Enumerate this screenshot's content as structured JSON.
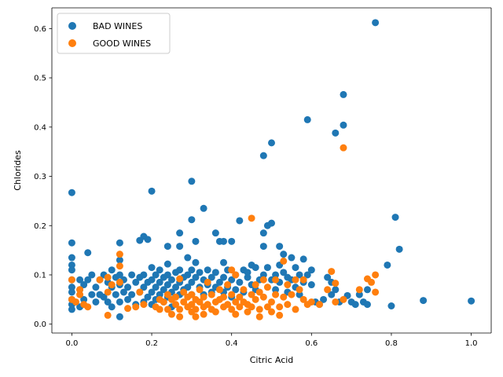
{
  "chart_data": {
    "type": "scatter",
    "title": "",
    "xlabel": "Citric Acid",
    "ylabel": "Chlorides",
    "xlim": [
      -0.05,
      1.05
    ],
    "ylim": [
      -0.018,
      0.642
    ],
    "xticks": [
      0.0,
      0.2,
      0.4,
      0.6,
      0.8,
      1.0
    ],
    "xtick_labels": [
      "0.0",
      "0.2",
      "0.4",
      "0.6",
      "0.8",
      "1.0"
    ],
    "yticks": [
      0.0,
      0.1,
      0.2,
      0.3,
      0.4,
      0.5,
      0.6
    ],
    "ytick_labels": [
      "0.0",
      "0.1",
      "0.2",
      "0.3",
      "0.4",
      "0.5",
      "0.6"
    ],
    "grid": false,
    "legend_position": "top-left",
    "series": [
      {
        "name": "BAD WINES",
        "color": "#1f77b4",
        "points": [
          [
            0.0,
            0.267
          ],
          [
            0.0,
            0.165
          ],
          [
            0.0,
            0.135
          ],
          [
            0.0,
            0.12
          ],
          [
            0.0,
            0.11
          ],
          [
            0.0,
            0.09
          ],
          [
            0.0,
            0.075
          ],
          [
            0.0,
            0.065
          ],
          [
            0.0,
            0.05
          ],
          [
            0.0,
            0.04
          ],
          [
            0.0,
            0.03
          ],
          [
            0.02,
            0.09
          ],
          [
            0.02,
            0.07
          ],
          [
            0.02,
            0.035
          ],
          [
            0.03,
            0.08
          ],
          [
            0.03,
            0.05
          ],
          [
            0.04,
            0.145
          ],
          [
            0.04,
            0.09
          ],
          [
            0.05,
            0.1
          ],
          [
            0.05,
            0.06
          ],
          [
            0.06,
            0.075
          ],
          [
            0.06,
            0.045
          ],
          [
            0.07,
            0.09
          ],
          [
            0.07,
            0.06
          ],
          [
            0.08,
            0.1
          ],
          [
            0.08,
            0.055
          ],
          [
            0.09,
            0.085
          ],
          [
            0.09,
            0.045
          ],
          [
            0.1,
            0.11
          ],
          [
            0.1,
            0.075
          ],
          [
            0.1,
            0.035
          ],
          [
            0.11,
            0.095
          ],
          [
            0.11,
            0.06
          ],
          [
            0.12,
            0.165
          ],
          [
            0.12,
            0.13
          ],
          [
            0.12,
            0.1
          ],
          [
            0.12,
            0.08
          ],
          [
            0.12,
            0.045
          ],
          [
            0.12,
            0.015
          ],
          [
            0.13,
            0.09
          ],
          [
            0.13,
            0.065
          ],
          [
            0.14,
            0.075
          ],
          [
            0.14,
            0.05
          ],
          [
            0.15,
            0.1
          ],
          [
            0.15,
            0.06
          ],
          [
            0.16,
            0.085
          ],
          [
            0.16,
            0.04
          ],
          [
            0.17,
            0.17
          ],
          [
            0.17,
            0.095
          ],
          [
            0.17,
            0.065
          ],
          [
            0.18,
            0.178
          ],
          [
            0.18,
            0.1
          ],
          [
            0.18,
            0.075
          ],
          [
            0.18,
            0.045
          ],
          [
            0.19,
            0.172
          ],
          [
            0.19,
            0.085
          ],
          [
            0.19,
            0.055
          ],
          [
            0.2,
            0.27
          ],
          [
            0.2,
            0.115
          ],
          [
            0.2,
            0.09
          ],
          [
            0.2,
            0.065
          ],
          [
            0.2,
            0.04
          ],
          [
            0.21,
            0.1
          ],
          [
            0.21,
            0.075
          ],
          [
            0.21,
            0.05
          ],
          [
            0.22,
            0.11
          ],
          [
            0.22,
            0.085
          ],
          [
            0.22,
            0.06
          ],
          [
            0.23,
            0.095
          ],
          [
            0.23,
            0.07
          ],
          [
            0.23,
            0.045
          ],
          [
            0.24,
            0.158
          ],
          [
            0.24,
            0.122
          ],
          [
            0.24,
            0.1
          ],
          [
            0.24,
            0.08
          ],
          [
            0.24,
            0.055
          ],
          [
            0.25,
            0.09
          ],
          [
            0.25,
            0.065
          ],
          [
            0.25,
            0.035
          ],
          [
            0.26,
            0.105
          ],
          [
            0.26,
            0.075
          ],
          [
            0.27,
            0.185
          ],
          [
            0.27,
            0.158
          ],
          [
            0.27,
            0.11
          ],
          [
            0.27,
            0.085
          ],
          [
            0.27,
            0.06
          ],
          [
            0.28,
            0.095
          ],
          [
            0.28,
            0.07
          ],
          [
            0.29,
            0.135
          ],
          [
            0.29,
            0.1
          ],
          [
            0.29,
            0.075
          ],
          [
            0.3,
            0.29
          ],
          [
            0.3,
            0.212
          ],
          [
            0.3,
            0.11
          ],
          [
            0.3,
            0.085
          ],
          [
            0.3,
            0.06
          ],
          [
            0.31,
            0.168
          ],
          [
            0.31,
            0.125
          ],
          [
            0.31,
            0.095
          ],
          [
            0.32,
            0.105
          ],
          [
            0.32,
            0.075
          ],
          [
            0.33,
            0.235
          ],
          [
            0.33,
            0.09
          ],
          [
            0.33,
            0.06
          ],
          [
            0.34,
            0.11
          ],
          [
            0.34,
            0.08
          ],
          [
            0.35,
            0.095
          ],
          [
            0.35,
            0.065
          ],
          [
            0.36,
            0.185
          ],
          [
            0.36,
            0.105
          ],
          [
            0.36,
            0.075
          ],
          [
            0.37,
            0.168
          ],
          [
            0.37,
            0.085
          ],
          [
            0.38,
            0.168
          ],
          [
            0.38,
            0.125
          ],
          [
            0.38,
            0.095
          ],
          [
            0.38,
            0.065
          ],
          [
            0.39,
            0.11
          ],
          [
            0.39,
            0.075
          ],
          [
            0.4,
            0.168
          ],
          [
            0.4,
            0.09
          ],
          [
            0.4,
            0.055
          ],
          [
            0.41,
            0.1
          ],
          [
            0.41,
            0.07
          ],
          [
            0.42,
            0.21
          ],
          [
            0.42,
            0.085
          ],
          [
            0.43,
            0.11
          ],
          [
            0.43,
            0.065
          ],
          [
            0.44,
            0.095
          ],
          [
            0.44,
            0.105
          ],
          [
            0.45,
            0.12
          ],
          [
            0.45,
            0.08
          ],
          [
            0.46,
            0.115
          ],
          [
            0.46,
            0.07
          ],
          [
            0.47,
            0.09
          ],
          [
            0.48,
            0.342
          ],
          [
            0.48,
            0.185
          ],
          [
            0.48,
            0.158
          ],
          [
            0.48,
            0.1
          ],
          [
            0.49,
            0.2
          ],
          [
            0.49,
            0.115
          ],
          [
            0.5,
            0.368
          ],
          [
            0.5,
            0.205
          ],
          [
            0.5,
            0.09
          ],
          [
            0.51,
            0.1
          ],
          [
            0.51,
            0.07
          ],
          [
            0.52,
            0.158
          ],
          [
            0.52,
            0.12
          ],
          [
            0.52,
            0.085
          ],
          [
            0.53,
            0.142
          ],
          [
            0.53,
            0.105
          ],
          [
            0.54,
            0.095
          ],
          [
            0.54,
            0.065
          ],
          [
            0.55,
            0.135
          ],
          [
            0.55,
            0.09
          ],
          [
            0.56,
            0.115
          ],
          [
            0.56,
            0.075
          ],
          [
            0.57,
            0.1
          ],
          [
            0.57,
            0.06
          ],
          [
            0.58,
            0.132
          ],
          [
            0.58,
            0.085
          ],
          [
            0.59,
            0.415
          ],
          [
            0.59,
            0.1
          ],
          [
            0.6,
            0.11
          ],
          [
            0.6,
            0.08
          ],
          [
            0.61,
            0.045
          ],
          [
            0.62,
            0.04
          ],
          [
            0.63,
            0.05
          ],
          [
            0.64,
            0.095
          ],
          [
            0.65,
            0.085
          ],
          [
            0.65,
            0.06
          ],
          [
            0.66,
            0.388
          ],
          [
            0.66,
            0.07
          ],
          [
            0.67,
            0.045
          ],
          [
            0.68,
            0.466
          ],
          [
            0.68,
            0.404
          ],
          [
            0.69,
            0.058
          ],
          [
            0.7,
            0.045
          ],
          [
            0.71,
            0.04
          ],
          [
            0.72,
            0.06
          ],
          [
            0.73,
            0.045
          ],
          [
            0.74,
            0.07
          ],
          [
            0.74,
            0.04
          ],
          [
            0.76,
            0.612
          ],
          [
            0.79,
            0.12
          ],
          [
            0.8,
            0.037
          ],
          [
            0.81,
            0.217
          ],
          [
            0.82,
            0.152
          ],
          [
            0.88,
            0.048
          ],
          [
            1.0,
            0.047
          ]
        ]
      },
      {
        "name": "GOOD WINES",
        "color": "#ff7f0e",
        "points": [
          [
            0.0,
            0.09
          ],
          [
            0.0,
            0.05
          ],
          [
            0.01,
            0.045
          ],
          [
            0.02,
            0.07
          ],
          [
            0.02,
            0.06
          ],
          [
            0.03,
            0.04
          ],
          [
            0.04,
            0.035
          ],
          [
            0.07,
            0.09
          ],
          [
            0.09,
            0.095
          ],
          [
            0.09,
            0.065
          ],
          [
            0.09,
            0.018
          ],
          [
            0.1,
            0.08
          ],
          [
            0.12,
            0.142
          ],
          [
            0.12,
            0.118
          ],
          [
            0.12,
            0.085
          ],
          [
            0.14,
            0.032
          ],
          [
            0.16,
            0.035
          ],
          [
            0.17,
            0.065
          ],
          [
            0.18,
            0.04
          ],
          [
            0.21,
            0.035
          ],
          [
            0.22,
            0.05
          ],
          [
            0.22,
            0.03
          ],
          [
            0.23,
            0.045
          ],
          [
            0.24,
            0.06
          ],
          [
            0.24,
            0.03
          ],
          [
            0.25,
            0.05
          ],
          [
            0.25,
            0.02
          ],
          [
            0.26,
            0.04
          ],
          [
            0.26,
            0.055
          ],
          [
            0.27,
            0.092
          ],
          [
            0.27,
            0.03
          ],
          [
            0.27,
            0.015
          ],
          [
            0.28,
            0.045
          ],
          [
            0.28,
            0.065
          ],
          [
            0.29,
            0.035
          ],
          [
            0.29,
            0.055
          ],
          [
            0.3,
            0.04
          ],
          [
            0.3,
            0.025
          ],
          [
            0.3,
            0.06
          ],
          [
            0.31,
            0.03
          ],
          [
            0.31,
            0.05
          ],
          [
            0.31,
            0.015
          ],
          [
            0.32,
            0.045
          ],
          [
            0.32,
            0.07
          ],
          [
            0.33,
            0.035
          ],
          [
            0.33,
            0.055
          ],
          [
            0.33,
            0.02
          ],
          [
            0.34,
            0.04
          ],
          [
            0.34,
            0.085
          ],
          [
            0.35,
            0.06
          ],
          [
            0.35,
            0.03
          ],
          [
            0.36,
            0.045
          ],
          [
            0.36,
            0.025
          ],
          [
            0.37,
            0.05
          ],
          [
            0.37,
            0.07
          ],
          [
            0.38,
            0.035
          ],
          [
            0.38,
            0.055
          ],
          [
            0.39,
            0.04
          ],
          [
            0.39,
            0.08
          ],
          [
            0.4,
            0.11
          ],
          [
            0.4,
            0.06
          ],
          [
            0.4,
            0.03
          ],
          [
            0.41,
            0.1
          ],
          [
            0.41,
            0.045
          ],
          [
            0.41,
            0.02
          ],
          [
            0.42,
            0.055
          ],
          [
            0.42,
            0.035
          ],
          [
            0.43,
            0.07
          ],
          [
            0.43,
            0.045
          ],
          [
            0.44,
            0.04
          ],
          [
            0.44,
            0.025
          ],
          [
            0.45,
            0.215
          ],
          [
            0.45,
            0.06
          ],
          [
            0.45,
            0.035
          ],
          [
            0.46,
            0.08
          ],
          [
            0.46,
            0.05
          ],
          [
            0.47,
            0.065
          ],
          [
            0.47,
            0.03
          ],
          [
            0.47,
            0.015
          ],
          [
            0.48,
            0.055
          ],
          [
            0.48,
            0.09
          ],
          [
            0.49,
            0.035
          ],
          [
            0.49,
            0.075
          ],
          [
            0.5,
            0.045
          ],
          [
            0.5,
            0.025
          ],
          [
            0.51,
            0.06
          ],
          [
            0.51,
            0.09
          ],
          [
            0.52,
            0.035
          ],
          [
            0.52,
            0.018
          ],
          [
            0.53,
            0.128
          ],
          [
            0.53,
            0.055
          ],
          [
            0.54,
            0.08
          ],
          [
            0.54,
            0.04
          ],
          [
            0.55,
            0.06
          ],
          [
            0.56,
            0.09
          ],
          [
            0.56,
            0.03
          ],
          [
            0.57,
            0.07
          ],
          [
            0.58,
            0.09
          ],
          [
            0.58,
            0.05
          ],
          [
            0.59,
            0.04
          ],
          [
            0.6,
            0.045
          ],
          [
            0.62,
            0.04
          ],
          [
            0.64,
            0.07
          ],
          [
            0.65,
            0.107
          ],
          [
            0.66,
            0.083
          ],
          [
            0.66,
            0.045
          ],
          [
            0.68,
            0.358
          ],
          [
            0.68,
            0.05
          ],
          [
            0.72,
            0.07
          ],
          [
            0.74,
            0.092
          ],
          [
            0.75,
            0.085
          ],
          [
            0.76,
            0.1
          ],
          [
            0.76,
            0.065
          ]
        ]
      }
    ]
  }
}
